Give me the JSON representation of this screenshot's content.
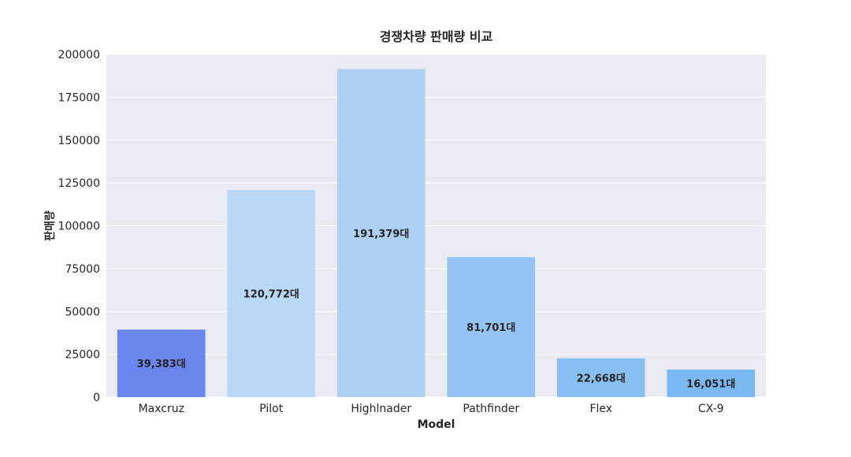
{
  "chart_data": {
    "type": "bar",
    "title": "경쟁차량 판매량 비교",
    "xlabel": "Model",
    "ylabel": "판매량",
    "categories": [
      "Maxcruz",
      "Pilot",
      "Highlnader",
      "Pathfinder",
      "Flex",
      "CX-9"
    ],
    "values": [
      39383,
      120772,
      191379,
      81701,
      22668,
      16051
    ],
    "data_labels": [
      "39,383대",
      "120,772대",
      "191,379대",
      "81,701대",
      "22,668대",
      "16,051대"
    ],
    "bar_colors": [
      "#6a85ee",
      "#b8d8f6",
      "#acd1f5",
      "#94c5f2",
      "#88bff1",
      "#7ab8f0"
    ],
    "ylim": [
      0,
      200000
    ],
    "yticks": [
      0,
      25000,
      50000,
      75000,
      100000,
      125000,
      150000,
      175000,
      200000
    ],
    "ytick_labels": [
      "0",
      "25000",
      "50000",
      "75000",
      "100000",
      "125000",
      "150000",
      "175000",
      "200000"
    ],
    "grid": true,
    "plot_background": "#eaeaf2",
    "grid_color": "#ffffff"
  }
}
